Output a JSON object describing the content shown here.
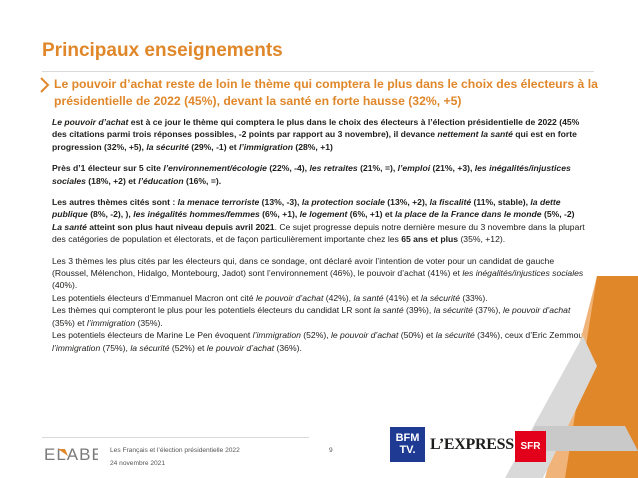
{
  "header": {
    "title": "Principaux enseignements",
    "subtitle": "Le pouvoir d’achat reste de loin le thème qui comptera le plus dans le choix des électeurs à la présidentielle de 2022 (45%), devant la santé en forte hausse (32%, +5)"
  },
  "paragraphs": {
    "p1": [
      {
        "t": "Le pouvoir d’achat",
        "s": "bi"
      },
      {
        "t": " est à ce jour le thème qui comptera le plus dans le choix des électeurs à l’élection présidentielle de 2022 (45% des citations parmi trois réponses possibles, -2 points par rapport au 3 novembre), il devance ",
        "s": "b"
      },
      {
        "t": "nettement la santé",
        "s": "bi"
      },
      {
        "t": " qui est en forte progression (32%, +5), ",
        "s": "b"
      },
      {
        "t": "la sécurité",
        "s": "bi"
      },
      {
        "t": " (29%, -1) et ",
        "s": "b"
      },
      {
        "t": "l’immigration",
        "s": "bi"
      },
      {
        "t": " (28%, +1)",
        "s": "b"
      }
    ],
    "p2": [
      {
        "t": "Près d’1 électeur sur 5 cite ",
        "s": "b"
      },
      {
        "t": "l’environnement/écologie",
        "s": "bi"
      },
      {
        "t": " (22%, -4), ",
        "s": "b"
      },
      {
        "t": "les retraites",
        "s": "bi"
      },
      {
        "t": " (21%, =), ",
        "s": "b"
      },
      {
        "t": "l’emploi",
        "s": "bi"
      },
      {
        "t": " (21%, +3), ",
        "s": "b"
      },
      {
        "t": "les inégalités/injustices sociales",
        "s": "bi"
      },
      {
        "t": " (18%, +2) et ",
        "s": "b"
      },
      {
        "t": "l’éducation",
        "s": "bi"
      },
      {
        "t": " (16%, =).",
        "s": "b"
      }
    ],
    "p3": [
      {
        "t": "Les autres thèmes cités sont : ",
        "s": "b"
      },
      {
        "t": "la menace terroriste",
        "s": "bi"
      },
      {
        "t": " (13%, -3), ",
        "s": "b"
      },
      {
        "t": "la protection sociale",
        "s": "bi"
      },
      {
        "t": " (13%, +2), ",
        "s": "b"
      },
      {
        "t": "la fiscalité",
        "s": "bi"
      },
      {
        "t": " (11%, stable), ",
        "s": "b"
      },
      {
        "t": "la dette publique",
        "s": "bi"
      },
      {
        "t": " (8%, -2), ), ",
        "s": "b"
      },
      {
        "t": "les inégalités hommes/femmes",
        "s": "bi"
      },
      {
        "t": " (6%, +1), ",
        "s": "b"
      },
      {
        "t": "le logement",
        "s": "bi"
      },
      {
        "t": " (6%, +1) et ",
        "s": "b"
      },
      {
        "t": "la place de la France dans le monde",
        "s": "bi"
      },
      {
        "t": " (5%, -2)",
        "s": "b"
      }
    ],
    "p4": [
      {
        "t": "La santé",
        "s": "bi"
      },
      {
        "t": " atteint son plus haut niveau depuis avril 2021",
        "s": "b"
      },
      {
        "t": ". Ce sujet progresse depuis notre dernière mesure du 3 novembre dans la plupart des catégories de population et électorats, et de façon particulièrement importante chez les ",
        "s": ""
      },
      {
        "t": "65 ans et plus",
        "s": "b"
      },
      {
        "t": " (35%, +12).",
        "s": ""
      }
    ],
    "p5": [
      {
        "t": "Les 3 thèmes les plus cités par les électeurs qui, dans ce sondage, ont déclaré avoir l’intention de voter pour un candidat de gauche (Roussel, Mélenchon, Hidalgo, Montebourg, Jadot) sont l’environnement (46%), le pouvoir d’achat (41%) et ",
        "s": ""
      },
      {
        "t": "les inégalités/injustices sociales",
        "s": "i"
      },
      {
        "t": " (40%).",
        "s": ""
      }
    ],
    "p6": [
      {
        "t": "Les potentiels électeurs d’Emmanuel Macron ont cité ",
        "s": ""
      },
      {
        "t": "le pouvoir d’achat",
        "s": "i"
      },
      {
        "t": " (42%), ",
        "s": ""
      },
      {
        "t": "la santé",
        "s": "i"
      },
      {
        "t": " (41%) et ",
        "s": ""
      },
      {
        "t": "la sécurité",
        "s": "i"
      },
      {
        "t": " (33%).",
        "s": ""
      }
    ],
    "p7": [
      {
        "t": "Les thèmes qui compteront le plus pour les potentiels électeurs du candidat LR sont ",
        "s": ""
      },
      {
        "t": "la santé",
        "s": "i"
      },
      {
        "t": " (39%), ",
        "s": ""
      },
      {
        "t": "la sécurité",
        "s": "i"
      },
      {
        "t": " (37%), ",
        "s": ""
      },
      {
        "t": "le pouvoir d’achat",
        "s": "i"
      },
      {
        "t": " (35%) et ",
        "s": ""
      },
      {
        "t": "l’immigration",
        "s": "i"
      },
      {
        "t": " (35%).",
        "s": ""
      }
    ],
    "p8": [
      {
        "t": "Les potentiels électeurs de Marine Le Pen évoquent ",
        "s": ""
      },
      {
        "t": "l’immigration",
        "s": "i"
      },
      {
        "t": " (52%), ",
        "s": ""
      },
      {
        "t": "le pouvoir d’achat",
        "s": "i"
      },
      {
        "t": " (50%) et ",
        "s": ""
      },
      {
        "t": "la sécurité",
        "s": "i"
      },
      {
        "t": " (34%), ceux d’Eric Zemmour ",
        "s": ""
      },
      {
        "t": "l’immigration",
        "s": "i"
      },
      {
        "t": " (75%), ",
        "s": ""
      },
      {
        "t": "la sécurité",
        "s": "i"
      },
      {
        "t": " (52%) et ",
        "s": ""
      },
      {
        "t": "le pouvoir d’achat",
        "s": "i"
      },
      {
        "t": " (36%).",
        "s": ""
      }
    ]
  },
  "footer": {
    "report_title": "Les Français et l’élection présidentielle 2022",
    "date": "24 novembre 2021",
    "page_number": "9",
    "logos": {
      "elabe": "ELABE",
      "bfm_line1": "BFM",
      "bfm_line2": "TV.",
      "express": "L’EXPRESS",
      "sfr": "SFR"
    }
  },
  "colors": {
    "accent_orange": "#e0872a",
    "bfm_blue": "#1f3a93",
    "sfr_red": "#e2001a",
    "deco_orange": "#f0b47a"
  }
}
